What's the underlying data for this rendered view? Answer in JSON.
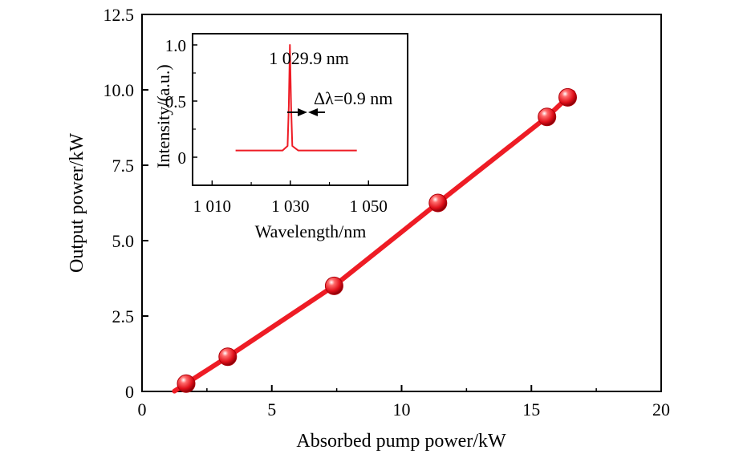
{
  "chart_data": [
    {
      "type": "line",
      "xlabel": "Absorbed pump power/kW",
      "ylabel": "Output power/kW",
      "xlim": [
        0,
        20
      ],
      "ylim": [
        0,
        12.5
      ],
      "xticks": [
        "0",
        "5",
        "10",
        "15",
        "20"
      ],
      "yticks": [
        "0",
        "2.5",
        "5.0",
        "7.5",
        "10.0",
        "12.5"
      ],
      "grid": false,
      "color": "#ee1c25",
      "x": [
        1.7,
        3.3,
        7.4,
        11.4,
        15.6,
        16.4
      ],
      "y": [
        0.26,
        1.15,
        3.5,
        6.25,
        9.1,
        9.75
      ]
    },
    {
      "type": "line",
      "inset": true,
      "xlabel": "Wavelength/nm",
      "ylabel": "Intensity/(a.u.)",
      "xlim": [
        1005,
        1060
      ],
      "ylim": [
        -0.25,
        1.1
      ],
      "xticks": [
        "1 010",
        "1 030",
        "1 050"
      ],
      "yticks": [
        "0",
        "0.5",
        "1.0"
      ],
      "color": "#ee1c25",
      "x": [
        1016,
        1028,
        1029.3,
        1029.6,
        1029.9,
        1030.2,
        1030.5,
        1032,
        1047
      ],
      "y": [
        0.06,
        0.06,
        0.1,
        0.45,
        1.0,
        0.45,
        0.1,
        0.06,
        0.06
      ],
      "peak_label": "1 029.9 nm",
      "linewidth_label": "Δλ=0.9 nm"
    }
  ]
}
